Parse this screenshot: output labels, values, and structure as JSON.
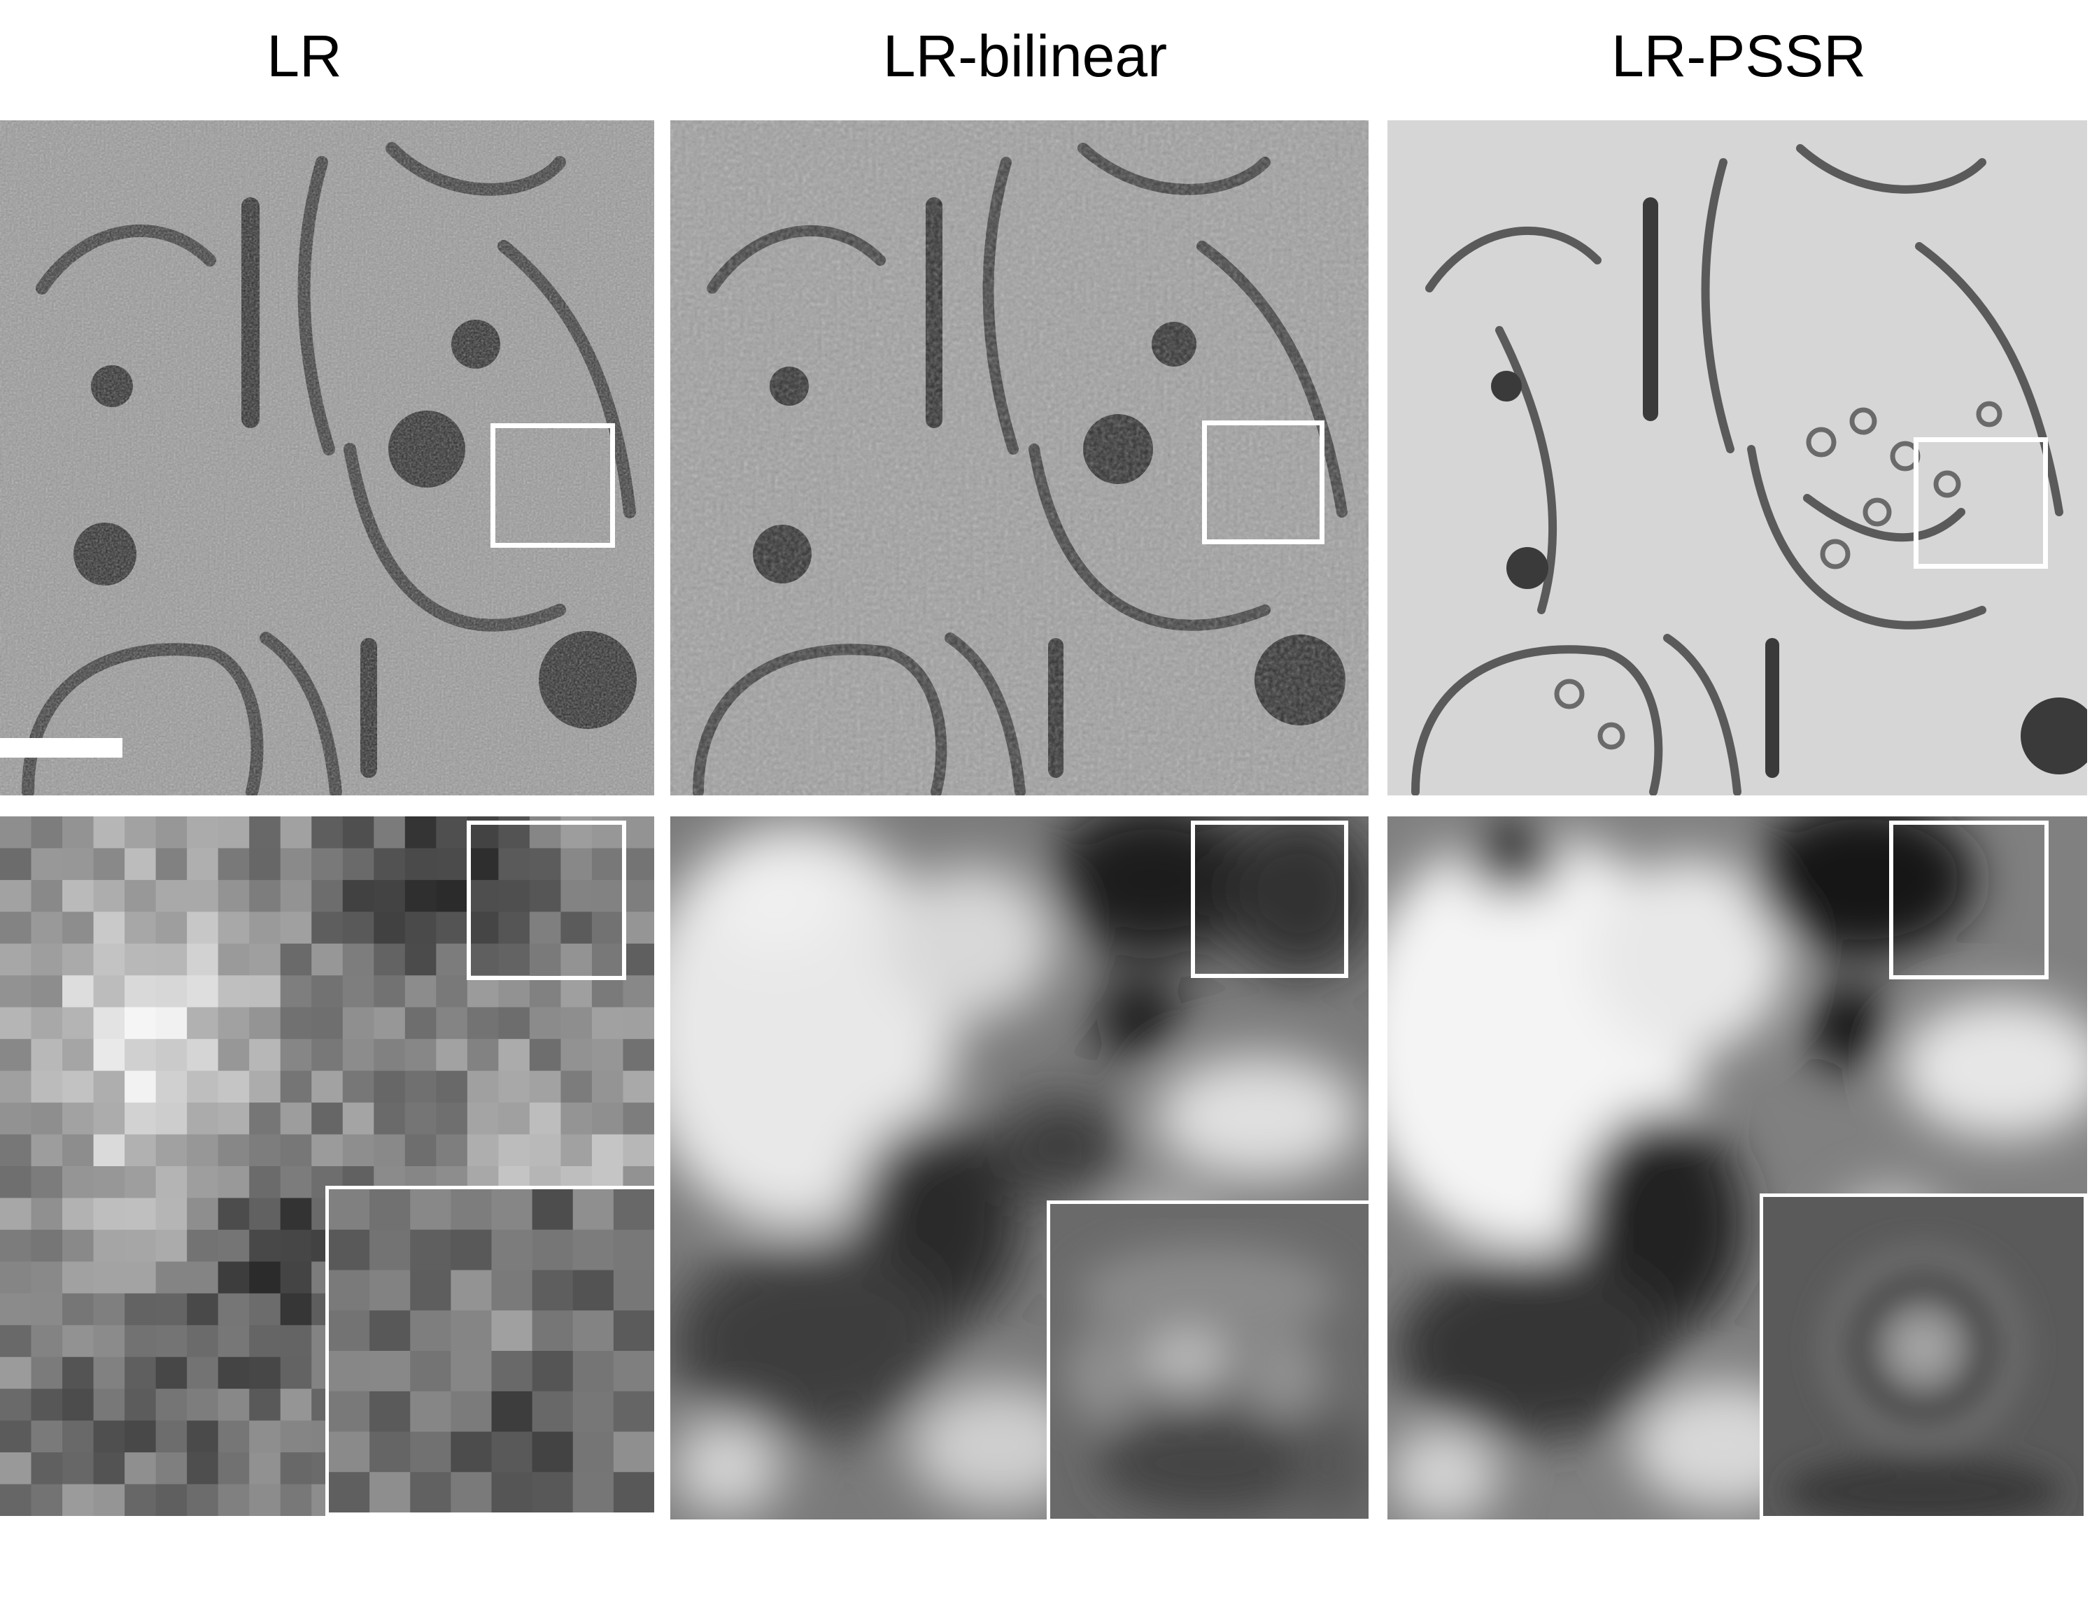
{
  "columns": [
    {
      "label": "LR"
    },
    {
      "label": "LR-bilinear"
    },
    {
      "label": "LR-PSSR"
    }
  ],
  "scale_bar": {
    "color": "#ffffff"
  },
  "colors": {
    "background": "#ffffff",
    "frame": "#ffffff"
  }
}
